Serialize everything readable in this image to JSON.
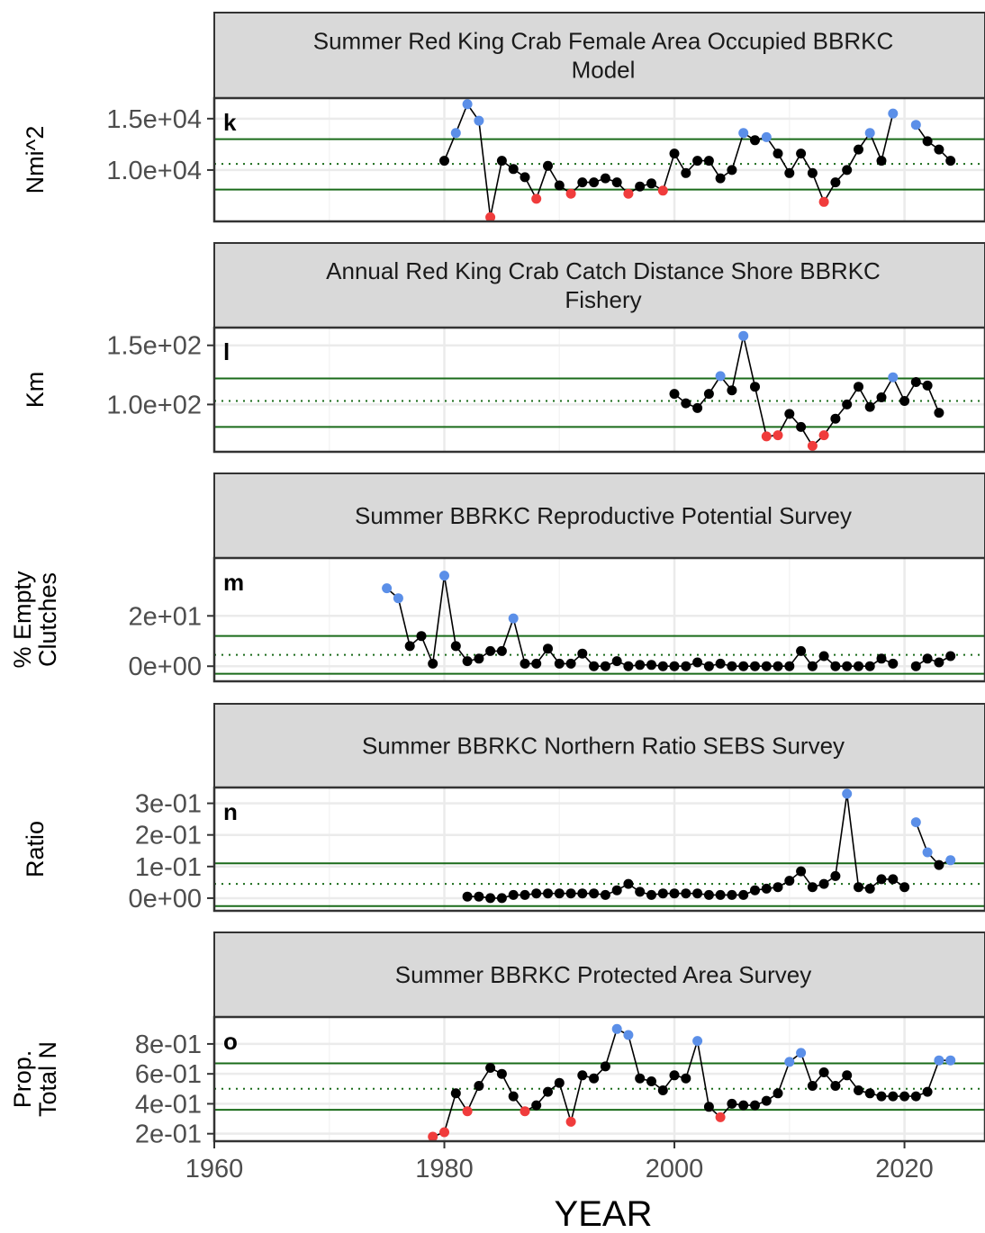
{
  "xlabel": "YEAR",
  "x_ticks": [
    1960,
    1980,
    2000,
    2020
  ],
  "xlim": [
    1960,
    2027
  ],
  "colors": {
    "strip_fill": "#d9d9d9",
    "line": "#000000",
    "normal_point": "#000000",
    "high_point": "#5b8fe8",
    "low_point": "#f03c3c",
    "threshold_line": "#1a6b1a",
    "grid": "#ebebeb"
  },
  "chart_data": [
    {
      "type": "line",
      "letter": "k",
      "title_lines": [
        "Summer Red King Crab Female Area Occupied BBRKC",
        "Model"
      ],
      "ylabel_lines": [
        "Nmi^2"
      ],
      "yticks": [
        {
          "v": 15000,
          "label": "1.5e+04"
        },
        {
          "v": 10000,
          "label": "1.0e+04"
        }
      ],
      "ylim": [
        5000,
        17000
      ],
      "mean": 10600,
      "upper": 13000,
      "lower": 8100,
      "series": [
        {
          "points": [
            [
              1980,
              10900
            ],
            [
              1981,
              13600
            ],
            [
              1982,
              16400
            ],
            [
              1983,
              14800
            ],
            [
              1984,
              5400
            ],
            [
              1985,
              10900
            ],
            [
              1986,
              10100
            ],
            [
              1987,
              9300
            ],
            [
              1988,
              7200
            ],
            [
              1989,
              10400
            ],
            [
              1990,
              8500
            ],
            [
              1991,
              7700
            ],
            [
              1992,
              8800
            ],
            [
              1993,
              8800
            ],
            [
              1994,
              9200
            ],
            [
              1995,
              8800
            ],
            [
              1996,
              7700
            ],
            [
              1997,
              8400
            ],
            [
              1998,
              8700
            ],
            [
              1999,
              8000
            ],
            [
              2000,
              11600
            ],
            [
              2001,
              9700
            ],
            [
              2002,
              10900
            ],
            [
              2003,
              10900
            ],
            [
              2004,
              9200
            ],
            [
              2005,
              10000
            ],
            [
              2006,
              13600
            ],
            [
              2007,
              12900
            ],
            [
              2008,
              13200
            ],
            [
              2009,
              11600
            ],
            [
              2010,
              9700
            ],
            [
              2011,
              11600
            ],
            [
              2012,
              9700
            ],
            [
              2013,
              6900
            ],
            [
              2014,
              8800
            ],
            [
              2015,
              10000
            ],
            [
              2016,
              12000
            ],
            [
              2017,
              13600
            ],
            [
              2018,
              10900
            ],
            [
              2019,
              15500
            ]
          ]
        },
        {
          "points": [
            [
              2021,
              14400
            ],
            [
              2022,
              12800
            ],
            [
              2023,
              12000
            ],
            [
              2024,
              10900
            ]
          ]
        }
      ]
    },
    {
      "type": "line",
      "letter": "l",
      "title_lines": [
        "Annual Red King Crab Catch Distance Shore BBRKC",
        "Fishery"
      ],
      "ylabel_lines": [
        "Km"
      ],
      "yticks": [
        {
          "v": 150,
          "label": "1.5e+02"
        },
        {
          "v": 100,
          "label": "1.0e+02"
        }
      ],
      "ylim": [
        60,
        165
      ],
      "mean": 103,
      "upper": 122,
      "lower": 81,
      "series": [
        {
          "points": [
            [
              2000,
              109
            ],
            [
              2001,
              101
            ],
            [
              2002,
              97
            ],
            [
              2003,
              109
            ],
            [
              2004,
              124
            ],
            [
              2005,
              112
            ],
            [
              2006,
              158
            ],
            [
              2007,
              115
            ],
            [
              2008,
              73
            ],
            [
              2009,
              74
            ],
            [
              2010,
              92
            ],
            [
              2011,
              81
            ],
            [
              2012,
              65
            ],
            [
              2013,
              74
            ],
            [
              2014,
              88
            ],
            [
              2015,
              100
            ],
            [
              2016,
              115
            ],
            [
              2017,
              98
            ],
            [
              2018,
              106
            ],
            [
              2019,
              123
            ],
            [
              2020,
              103
            ],
            [
              2021,
              119
            ],
            [
              2022,
              116
            ],
            [
              2023,
              93
            ]
          ]
        }
      ]
    },
    {
      "type": "line",
      "letter": "m",
      "title_lines": [
        "Summer BBRKC Reproductive Potential Survey"
      ],
      "ylabel_lines": [
        "% Empty",
        "Clutches"
      ],
      "yticks": [
        {
          "v": 20,
          "label": "2e+01"
        },
        {
          "v": 0,
          "label": "0e+00"
        }
      ],
      "ylim": [
        -6,
        43
      ],
      "mean": 4.5,
      "upper": 12,
      "lower": -3,
      "series": [
        {
          "points": [
            [
              1975,
              31
            ],
            [
              1976,
              27
            ],
            [
              1977,
              8
            ],
            [
              1978,
              12
            ],
            [
              1979,
              1
            ],
            [
              1980,
              36
            ],
            [
              1981,
              8
            ],
            [
              1982,
              2
            ],
            [
              1983,
              3
            ],
            [
              1984,
              6
            ],
            [
              1985,
              6
            ],
            [
              1986,
              19
            ],
            [
              1987,
              1
            ],
            [
              1988,
              1
            ],
            [
              1989,
              7
            ],
            [
              1990,
              1
            ],
            [
              1991,
              1
            ],
            [
              1992,
              5
            ],
            [
              1993,
              0
            ],
            [
              1994,
              0
            ],
            [
              1995,
              2
            ],
            [
              1996,
              0
            ],
            [
              1997,
              0.5
            ],
            [
              1998,
              0.5
            ],
            [
              1999,
              0
            ],
            [
              2000,
              0
            ],
            [
              2001,
              0
            ],
            [
              2002,
              1.5
            ],
            [
              2003,
              0
            ],
            [
              2004,
              1
            ],
            [
              2005,
              0
            ],
            [
              2006,
              0
            ],
            [
              2007,
              0
            ],
            [
              2008,
              0
            ],
            [
              2009,
              0
            ],
            [
              2010,
              0
            ],
            [
              2011,
              6
            ],
            [
              2012,
              0
            ],
            [
              2013,
              4
            ],
            [
              2014,
              0
            ],
            [
              2015,
              0
            ],
            [
              2016,
              0
            ],
            [
              2017,
              0
            ],
            [
              2018,
              3
            ],
            [
              2019,
              1
            ]
          ]
        },
        {
          "points": [
            [
              2021,
              0
            ],
            [
              2022,
              3
            ],
            [
              2023,
              1.5
            ],
            [
              2024,
              4
            ]
          ]
        }
      ]
    },
    {
      "type": "line",
      "letter": "n",
      "title_lines": [
        "Summer BBRKC Northern Ratio SEBS Survey"
      ],
      "ylabel_lines": [
        "Ratio"
      ],
      "yticks": [
        {
          "v": 0.3,
          "label": "3e-01"
        },
        {
          "v": 0.2,
          "label": "2e-01"
        },
        {
          "v": 0.1,
          "label": "1e-01"
        },
        {
          "v": 0,
          "label": "0e+00"
        }
      ],
      "ylim": [
        -0.04,
        0.35
      ],
      "mean": 0.045,
      "upper": 0.11,
      "lower": -0.025,
      "series": [
        {
          "points": [
            [
              1982,
              0.005
            ],
            [
              1983,
              0.005
            ],
            [
              1984,
              0
            ],
            [
              1985,
              0
            ],
            [
              1986,
              0.01
            ],
            [
              1987,
              0.01
            ],
            [
              1988,
              0.015
            ],
            [
              1989,
              0.015
            ],
            [
              1990,
              0.015
            ],
            [
              1991,
              0.015
            ],
            [
              1992,
              0.015
            ],
            [
              1993,
              0.015
            ],
            [
              1994,
              0.01
            ],
            [
              1995,
              0.025
            ],
            [
              1996,
              0.045
            ],
            [
              1997,
              0.02
            ],
            [
              1998,
              0.01
            ],
            [
              1999,
              0.015
            ],
            [
              2000,
              0.015
            ],
            [
              2001,
              0.015
            ],
            [
              2002,
              0.015
            ],
            [
              2003,
              0.01
            ],
            [
              2004,
              0.01
            ],
            [
              2005,
              0.01
            ],
            [
              2006,
              0.01
            ],
            [
              2007,
              0.025
            ],
            [
              2008,
              0.03
            ],
            [
              2009,
              0.035
            ],
            [
              2010,
              0.055
            ],
            [
              2011,
              0.085
            ],
            [
              2012,
              0.035
            ],
            [
              2013,
              0.045
            ],
            [
              2014,
              0.07
            ],
            [
              2015,
              0.33
            ],
            [
              2016,
              0.035
            ],
            [
              2017,
              0.03
            ],
            [
              2018,
              0.06
            ],
            [
              2019,
              0.06
            ],
            [
              2020,
              0.035
            ]
          ]
        },
        {
          "points": [
            [
              2021,
              0.24
            ],
            [
              2022,
              0.145
            ],
            [
              2023,
              0.105
            ],
            [
              2024,
              0.12
            ]
          ]
        }
      ]
    },
    {
      "type": "line",
      "letter": "o",
      "title_lines": [
        "Summer BBRKC Protected Area Survey"
      ],
      "ylabel_lines": [
        "Prop.",
        "Total N"
      ],
      "yticks": [
        {
          "v": 0.8,
          "label": "8e-01"
        },
        {
          "v": 0.6,
          "label": "6e-01"
        },
        {
          "v": 0.4,
          "label": "4e-01"
        },
        {
          "v": 0.2,
          "label": "2e-01"
        }
      ],
      "ylim": [
        0.15,
        0.98
      ],
      "mean": 0.5,
      "upper": 0.67,
      "lower": 0.36,
      "series": [
        {
          "points": [
            [
              1979,
              0.18
            ],
            [
              1980,
              0.21
            ],
            [
              1981,
              0.47
            ],
            [
              1982,
              0.35
            ],
            [
              1983,
              0.52
            ],
            [
              1984,
              0.64
            ],
            [
              1985,
              0.6
            ],
            [
              1986,
              0.45
            ],
            [
              1987,
              0.35
            ],
            [
              1988,
              0.39
            ],
            [
              1989,
              0.48
            ],
            [
              1990,
              0.54
            ],
            [
              1991,
              0.28
            ],
            [
              1992,
              0.59
            ],
            [
              1993,
              0.57
            ],
            [
              1994,
              0.65
            ],
            [
              1995,
              0.9
            ],
            [
              1996,
              0.86
            ],
            [
              1997,
              0.57
            ],
            [
              1998,
              0.55
            ],
            [
              1999,
              0.49
            ],
            [
              2000,
              0.59
            ],
            [
              2001,
              0.57
            ],
            [
              2002,
              0.82
            ],
            [
              2003,
              0.38
            ],
            [
              2004,
              0.31
            ],
            [
              2005,
              0.4
            ],
            [
              2006,
              0.39
            ],
            [
              2007,
              0.39
            ],
            [
              2008,
              0.42
            ],
            [
              2009,
              0.47
            ],
            [
              2010,
              0.68
            ],
            [
              2011,
              0.74
            ],
            [
              2012,
              0.52
            ],
            [
              2013,
              0.61
            ],
            [
              2014,
              0.52
            ],
            [
              2015,
              0.59
            ],
            [
              2016,
              0.49
            ],
            [
              2017,
              0.47
            ],
            [
              2018,
              0.45
            ],
            [
              2019,
              0.45
            ],
            [
              2020,
              0.45
            ],
            [
              2021,
              0.45
            ],
            [
              2022,
              0.48
            ],
            [
              2023,
              0.69
            ],
            [
              2024,
              0.69
            ]
          ]
        }
      ]
    }
  ]
}
